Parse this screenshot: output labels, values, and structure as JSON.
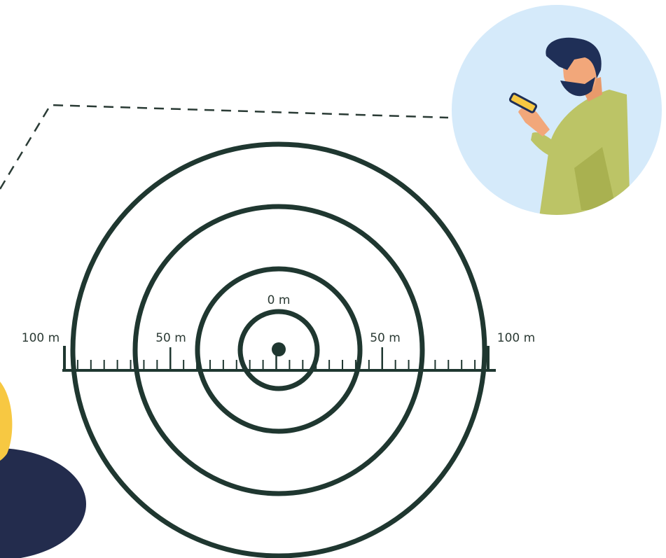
{
  "scale": {
    "center_label": "0 m",
    "left_labels": [
      "100 m",
      "50 m"
    ],
    "right_labels": [
      "50 m",
      "100 m"
    ]
  }
}
